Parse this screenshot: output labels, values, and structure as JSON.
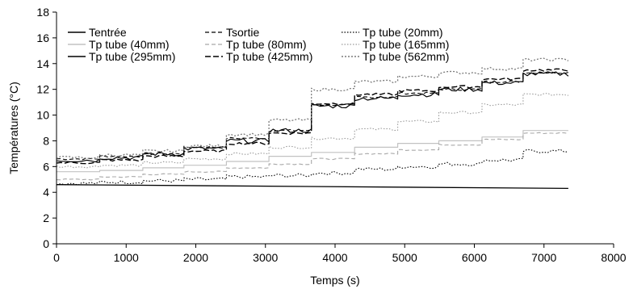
{
  "chart_data": {
    "type": "line",
    "title": "",
    "xlabel": "Temps (s)",
    "ylabel": "Températures (°C)",
    "xlim": [
      0,
      8000
    ],
    "ylim": [
      0,
      18
    ],
    "xticks": [
      0,
      1000,
      2000,
      3000,
      4000,
      5000,
      6000,
      7000,
      8000
    ],
    "yticks": [
      0,
      2,
      4,
      6,
      8,
      10,
      12,
      14,
      16,
      18
    ],
    "grid": false,
    "legend_position": "top-left",
    "step_times": [
      0,
      620,
      1240,
      1830,
      2440,
      3050,
      3660,
      4280,
      4900,
      5490,
      6110,
      6700,
      7350
    ],
    "series": [
      {
        "name": "Tentrée",
        "color": "#000000",
        "dash": "",
        "width": 1.3,
        "shape": "line",
        "points": [
          [
            0,
            4.6
          ],
          [
            7350,
            4.3
          ]
        ]
      },
      {
        "name": "Tsortie",
        "color": "#000000",
        "dash": "5,3",
        "width": 1.1,
        "shape": "steps",
        "noise": 0.08,
        "levels": [
          6.6,
          6.8,
          7.0,
          7.5,
          8.2,
          8.8,
          10.8,
          11.4,
          11.7,
          12.0,
          12.6,
          13.3,
          14.4
        ]
      },
      {
        "name": "Tp tube (20mm)",
        "color": "#000000",
        "dash": "1.5,2",
        "width": 1.1,
        "shape": "steps",
        "noise": 0.15,
        "levels": [
          4.7,
          4.8,
          4.9,
          5.0,
          5.2,
          5.3,
          5.5,
          5.8,
          6.0,
          6.2,
          6.5,
          7.2,
          8.3
        ]
      },
      {
        "name": "Tp tube (40mm)",
        "color": "#c2c2c2",
        "dash": "",
        "width": 1.2,
        "shape": "steps",
        "noise": 0,
        "levels": [
          5.6,
          5.7,
          5.9,
          6.1,
          6.4,
          6.8,
          7.1,
          7.5,
          7.8,
          8.0,
          8.3,
          8.8,
          9.1
        ]
      },
      {
        "name": "Tp tube (80mm)",
        "color": "#a8a8a8",
        "dash": "5,3",
        "width": 1.1,
        "shape": "steps",
        "noise": 0.05,
        "levels": [
          5.0,
          5.2,
          5.4,
          5.6,
          5.9,
          6.2,
          6.6,
          7.0,
          7.3,
          7.7,
          8.1,
          8.6,
          8.9
        ]
      },
      {
        "name": "Tp tube (165mm)",
        "color": "#9a9a9a",
        "dash": "1.5,2",
        "width": 1.1,
        "shape": "steps",
        "noise": 0.1,
        "levels": [
          6.0,
          6.1,
          6.3,
          6.6,
          7.0,
          7.5,
          8.2,
          8.9,
          9.5,
          10.2,
          10.8,
          11.6,
          12.2
        ]
      },
      {
        "name": "Tp tube (295mm)",
        "color": "#000000",
        "dash": "",
        "width": 1.2,
        "shape": "steps",
        "noise": 0.18,
        "levels": [
          6.5,
          6.7,
          7.0,
          7.4,
          8.0,
          8.8,
          10.7,
          11.3,
          11.6,
          12.0,
          12.5,
          13.2,
          14.4
        ]
      },
      {
        "name": "Tp tube (425mm)",
        "color": "#000000",
        "dash": "7,3",
        "width": 1.4,
        "shape": "steps",
        "noise": 0.1,
        "levels": [
          6.3,
          6.5,
          6.8,
          7.2,
          7.8,
          8.6,
          10.9,
          11.6,
          11.9,
          12.2,
          12.8,
          13.5,
          14.5
        ]
      },
      {
        "name": "Tp tube (562mm)",
        "color": "#7a7a7a",
        "dash": "2,2",
        "width": 1.3,
        "shape": "steps",
        "noise": 0.12,
        "levels": [
          6.7,
          6.9,
          7.2,
          7.6,
          8.5,
          9.6,
          12.0,
          12.6,
          13.0,
          13.3,
          13.6,
          14.3,
          15.2
        ]
      }
    ]
  }
}
